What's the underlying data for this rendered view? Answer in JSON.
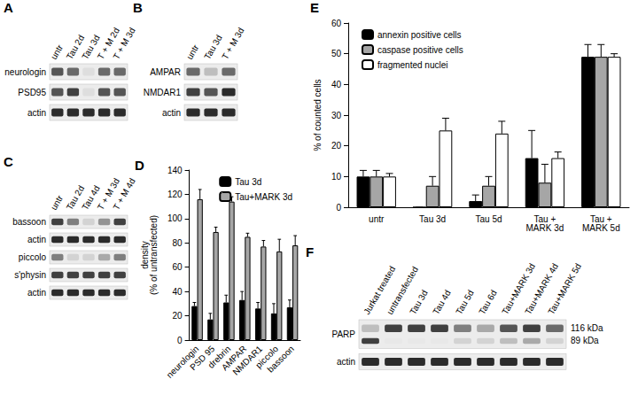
{
  "chart_data": [
    {
      "panel": "D",
      "type": "bar",
      "ylabel": "density\n(% of untransfected)",
      "categories": [
        "neurologin",
        "PSD 95",
        "drebrin",
        "AMPAR",
        "NMDAR1",
        "piccolo",
        "bassoon"
      ],
      "series": [
        {
          "name": "Tau 3d",
          "color": "#000000",
          "values": [
            28,
            17,
            31,
            33,
            26,
            22,
            27
          ],
          "errors": [
            3,
            5,
            6,
            7,
            5,
            8,
            6
          ]
        },
        {
          "name": "Tau+MARK 3d",
          "color": "#a6a6a6",
          "values": [
            116,
            89,
            114,
            85,
            77,
            73,
            78
          ],
          "errors": [
            8,
            4,
            4,
            3,
            5,
            10,
            8
          ]
        }
      ],
      "ylim": [
        0,
        140
      ],
      "yticks": [
        0,
        20,
        40,
        60,
        80,
        100,
        120,
        140
      ],
      "legend": "upper right"
    },
    {
      "panel": "E",
      "type": "bar",
      "ylabel": "% of counted cells",
      "categories": [
        "untr",
        "Tau 3d",
        "Tau 5d",
        "Tau +\nMARK 3d",
        "Tau +\nMARK 5d"
      ],
      "series": [
        {
          "name": "annexin positive cells",
          "color": "#000000",
          "values": [
            10,
            0,
            2,
            16,
            49
          ],
          "errors": [
            2,
            0,
            2,
            9,
            4
          ]
        },
        {
          "name": "caspase positive cells",
          "color": "#a6a6a6",
          "values": [
            10,
            7,
            7,
            8,
            49
          ],
          "errors": [
            2,
            3,
            3,
            6,
            4
          ]
        },
        {
          "name": "fragmented nuclei",
          "color": "#ffffff",
          "values": [
            10,
            25,
            24,
            16,
            49
          ],
          "errors": [
            1,
            4,
            4,
            2,
            1
          ]
        }
      ],
      "ylim": [
        0,
        60
      ],
      "yticks": [
        0,
        10,
        20,
        30,
        40,
        50,
        60
      ],
      "legend": "upper left"
    }
  ],
  "blots": [
    {
      "panel": "A",
      "lanes": [
        "untr",
        "Tau 2d",
        "Tau 3d",
        "T + M 2d",
        "T + M 3d"
      ],
      "rows": [
        {
          "label": "neurologin",
          "bands": [
            0.7,
            0.6,
            0.05,
            0.6,
            0.6
          ]
        },
        {
          "label": "PSD95",
          "bands": [
            0.7,
            0.8,
            0.05,
            0.7,
            0.7
          ]
        },
        {
          "label": "actin",
          "bands": [
            0.9,
            0.9,
            0.9,
            0.9,
            0.9
          ]
        }
      ]
    },
    {
      "panel": "B",
      "lanes": [
        "untr",
        "Tau 3d",
        "T + M  3d"
      ],
      "rows": [
        {
          "label": "AMPAR",
          "bands": [
            0.6,
            0.2,
            0.6
          ]
        },
        {
          "label": "NMDAR1",
          "bands": [
            0.8,
            0.7,
            0.9
          ]
        },
        {
          "label": "actin",
          "bands": [
            0.9,
            0.9,
            0.9
          ]
        }
      ]
    },
    {
      "panel": "C",
      "lanes": [
        "untr",
        "Tau 2d",
        "Tau 4d",
        "T + M 3d",
        "T + M 4d"
      ],
      "rows": [
        {
          "label": "bassoon",
          "bands": [
            0.8,
            0.5,
            0.1,
            0.4,
            0.8
          ]
        },
        {
          "label": "actin",
          "bands": [
            0.9,
            0.9,
            0.9,
            0.9,
            0.9
          ]
        },
        {
          "label": "piccolo",
          "bands": [
            0.5,
            0.1,
            0.1,
            0.3,
            0.5
          ]
        },
        {
          "label": "s'physin",
          "bands": [
            0.8,
            0.8,
            0.8,
            0.8,
            0.8
          ]
        },
        {
          "label": "actin",
          "bands": [
            0.9,
            0.9,
            0.9,
            0.9,
            0.9
          ]
        }
      ]
    },
    {
      "panel": "F",
      "lanes": [
        "Jurkat treated",
        "untransfected",
        "Tau 3d",
        "Tau 4d",
        "Tau 5d",
        "Tau 6d",
        "Tau+MARK 3d",
        "Tau+MARK 4d",
        "Tau+MARK 5d"
      ],
      "rows": [
        {
          "label": "PARP",
          "bands": [
            0.2,
            0.8,
            0.8,
            0.8,
            0.5,
            0.3,
            0.7,
            0.8,
            0.6
          ],
          "lower_bands": [
            0.8,
            0.0,
            0.0,
            0.0,
            0.1,
            0.1,
            0.2,
            0.3,
            0.1
          ],
          "sizes": [
            "116 kDa",
            "89 kDa"
          ]
        },
        {
          "label": "actin",
          "bands": [
            0.9,
            0.9,
            0.9,
            0.9,
            0.9,
            0.9,
            0.9,
            0.9,
            0.9
          ]
        }
      ]
    }
  ]
}
